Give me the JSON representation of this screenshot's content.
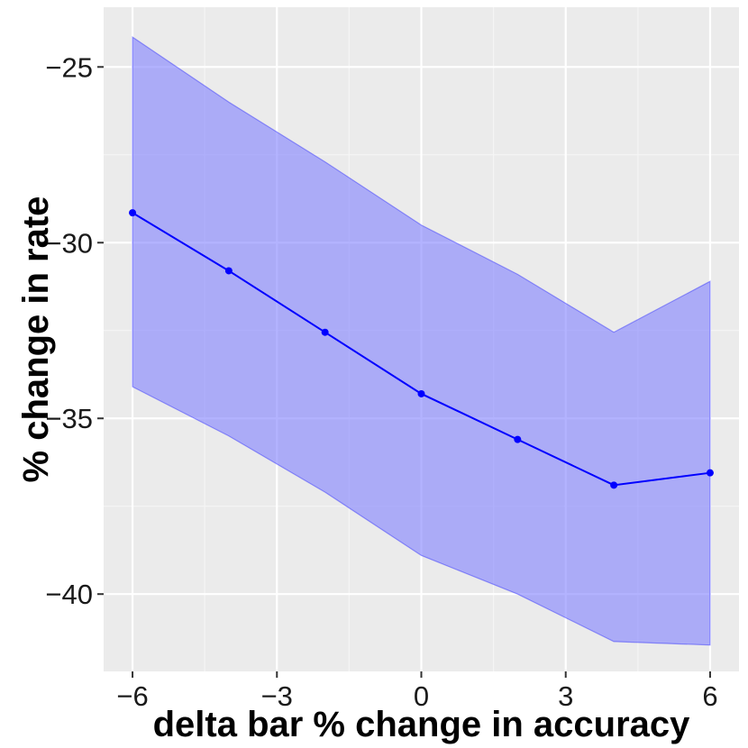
{
  "chart_data": {
    "type": "line",
    "title": "",
    "xlabel": "delta bar % change in accuracy",
    "ylabel": "% change in rate",
    "x": [
      -6,
      -4,
      -2,
      0,
      2,
      4,
      6
    ],
    "series": [
      {
        "values": [
          -29.15,
          -30.8,
          -32.55,
          -34.3,
          -35.6,
          -36.9,
          -36.55
        ],
        "lower": [
          -34.1,
          -35.5,
          -37.1,
          -38.9,
          -40.0,
          -41.35,
          -41.45
        ],
        "upper": [
          -24.15,
          -26.0,
          -27.7,
          -29.5,
          -30.9,
          -32.55,
          -31.1
        ]
      }
    ],
    "xlim": [
      -6.6,
      6.6
    ],
    "ylim": [
      -42.2,
      -23.3
    ],
    "x_ticks": [
      -6,
      -3,
      0,
      3,
      6
    ],
    "x_tick_labels": [
      "−6",
      "−3",
      "0",
      "3",
      "6"
    ],
    "y_ticks": [
      -25,
      -30,
      -35,
      -40
    ],
    "y_tick_labels": [
      "−25",
      "−30",
      "−35",
      "−40"
    ],
    "grid": true,
    "colors": {
      "panel": "#EBEBEB",
      "grid_major": "#FFFFFF",
      "grid_minor": "#F5F5F5",
      "line": "#0000FF",
      "ribbon_fill": "#8080FF",
      "ribbon_opacity": 0.6,
      "axis_text": "#1A1A1A"
    }
  }
}
